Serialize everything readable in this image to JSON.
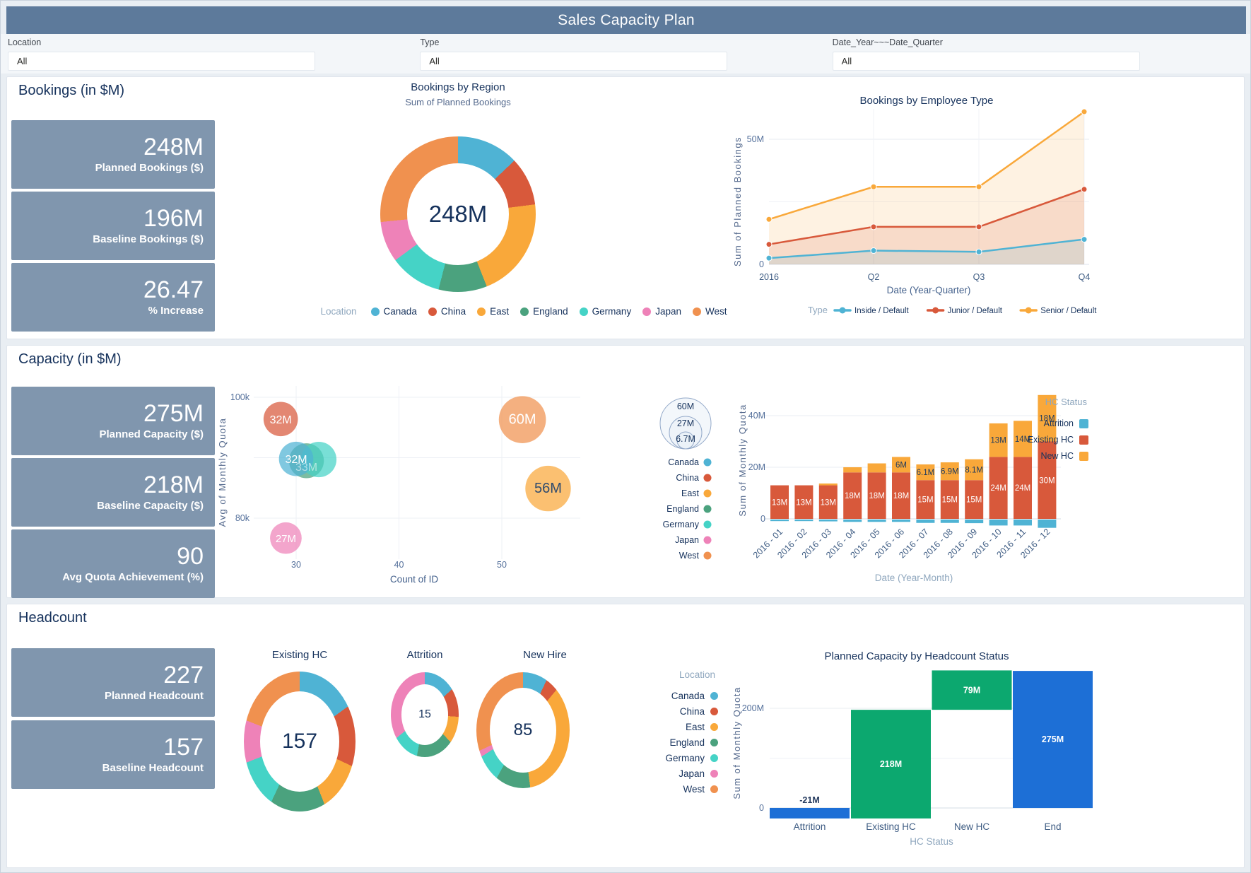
{
  "header": {
    "title": "Sales Capacity Plan"
  },
  "filters": [
    {
      "label": "Location",
      "value": "All"
    },
    {
      "label": "Type",
      "value": "All"
    },
    {
      "label": "Date_Year~~~Date_Quarter",
      "value": "All"
    }
  ],
  "colors": {
    "header_bar": "#5D7A9B",
    "kpi_tile": "#8096AE",
    "title_text": "#16325C",
    "location": {
      "Canada": "#4FB3D4",
      "China": "#D8593B",
      "East": "#F9A83A",
      "England": "#4BA27E",
      "Germany": "#45D3C6",
      "Japan": "#EE82B8",
      "West": "#F0914F"
    },
    "series": {
      "Inside / Default": "#4FB3D4",
      "Junior / Default": "#D8593B",
      "Senior / Default": "#F9A83A"
    },
    "hc_status": {
      "Attrition": "#4FB3D4",
      "Existing HC": "#D8593B",
      "New HC": "#F9A83A"
    },
    "waterfall": {
      "blue": "#1D6FD6",
      "green": "#0CA86F"
    }
  },
  "location_legend": {
    "title": "Location",
    "items": [
      "Canada",
      "China",
      "East",
      "England",
      "Germany",
      "Japan",
      "West"
    ]
  },
  "sections": {
    "bookings": {
      "title": "Bookings (in $M)",
      "kpis": [
        {
          "value": "248M",
          "label": "Planned Bookings ($)"
        },
        {
          "value": "196M",
          "label": "Baseline Bookings ($)"
        },
        {
          "value": "26.47",
          "label": "% Increase"
        }
      ]
    },
    "capacity": {
      "title": "Capacity (in $M)",
      "kpis": [
        {
          "value": "275M",
          "label": "Planned Capacity ($)"
        },
        {
          "value": "218M",
          "label": "Baseline Capacity ($)"
        },
        {
          "value": "90",
          "label": "Avg Quota Achievement (%)"
        }
      ]
    },
    "headcount": {
      "title": "Headcount",
      "kpis": [
        {
          "value": "227",
          "label": "Planned Headcount"
        },
        {
          "value": "157",
          "label": "Baseline Headcount"
        }
      ]
    }
  },
  "chart_data": [
    {
      "id": "bookings_by_region",
      "type": "donut",
      "title": "Bookings by Region",
      "subtitle": "Sum of Planned Bookings",
      "center_label": "248M",
      "unit": "$M",
      "legend_title": "Location",
      "segments": [
        {
          "location": "Canada",
          "value": 32
        },
        {
          "location": "China",
          "value": 25
        },
        {
          "location": "East",
          "value": 52
        },
        {
          "location": "England",
          "value": 25
        },
        {
          "location": "Germany",
          "value": 27
        },
        {
          "location": "Japan",
          "value": 21
        },
        {
          "location": "West",
          "value": 66
        }
      ]
    },
    {
      "id": "bookings_by_employee_type",
      "type": "line",
      "title": "Bookings by Employee Type",
      "x": [
        "2016",
        "Q2",
        "Q3",
        "Q4"
      ],
      "xlabel": "Date (Year-Quarter)",
      "ylabel": "Sum of Planned Bookings",
      "ylim": [
        0,
        63
      ],
      "legend_title": "Type",
      "yticks": [
        {
          "v": 0,
          "label": "0"
        },
        {
          "v": 50,
          "label": "50M"
        }
      ],
      "series": [
        {
          "name": "Inside / Default",
          "values": [
            2.5,
            5.5,
            5,
            10
          ]
        },
        {
          "name": "Junior / Default",
          "values": [
            8,
            15,
            15,
            30
          ]
        },
        {
          "name": "Senior / Default",
          "values": [
            18,
            31,
            31,
            61
          ]
        }
      ]
    },
    {
      "id": "capacity_bubble",
      "type": "bubble",
      "xlabel": "Count of ID",
      "ylabel": "Avg of Monthly Quota",
      "xticks": [
        30,
        40,
        50
      ],
      "yticks": [
        {
          "v": 80000,
          "label": "80k"
        },
        {
          "v": 100000,
          "label": "100k"
        }
      ],
      "points": [
        {
          "location": "China",
          "x": 28.5,
          "y": 96400,
          "size_m": 32,
          "value": "32M"
        },
        {
          "location": "England",
          "x": 31,
          "y": 89500,
          "size_m": 33,
          "value": "33M",
          "label_faint": true
        },
        {
          "location": "Germany",
          "x": 32.2,
          "y": 89700,
          "size_m": 34,
          "value": "34M",
          "label_hidden": true
        },
        {
          "location": "Canada",
          "x": 30,
          "y": 89800,
          "size_m": 32,
          "value": "32M"
        },
        {
          "location": "Japan",
          "x": 29,
          "y": 76700,
          "size_m": 27,
          "value": "27M"
        },
        {
          "location": "West",
          "x": 52,
          "y": 96300,
          "size_m": 60,
          "value": "60M"
        },
        {
          "location": "East",
          "x": 54.5,
          "y": 84900,
          "size_m": 56,
          "value": "56M",
          "label_dark": true
        }
      ],
      "size_legend": [
        "60M",
        "27M",
        "6.7M"
      ]
    },
    {
      "id": "capacity_by_month",
      "type": "stacked_bar",
      "xlabel": "Date (Year-Month)",
      "ylabel": "Sum of Monthly Quota",
      "legend_title": "HC Status",
      "categories": [
        "2016 - 01",
        "2016 - 02",
        "2016 - 03",
        "2016 - 04",
        "2016 - 05",
        "2016 - 06",
        "2016 - 07",
        "2016 - 08",
        "2016 - 09",
        "2016 - 10",
        "2016 - 11",
        "2016 - 12"
      ],
      "yticks": [
        {
          "v": 0,
          "label": "0"
        },
        {
          "v": 20,
          "label": "20M"
        },
        {
          "v": 40,
          "label": "40M"
        }
      ],
      "series": [
        {
          "name": "Attrition",
          "values": [
            -0.6,
            -0.6,
            -0.7,
            -0.9,
            -0.9,
            -0.9,
            -1.3,
            -1.3,
            -1.4,
            -2.3,
            -2.3,
            -3.2
          ],
          "labels": [
            "",
            "",
            "",
            "",
            "",
            "",
            "",
            "",
            "",
            "",
            "",
            ""
          ]
        },
        {
          "name": "Existing HC",
          "values": [
            13,
            13,
            13,
            18,
            18,
            18,
            15,
            15,
            15,
            24,
            24,
            30
          ],
          "labels": [
            "13M",
            "13M",
            "13M",
            "18M",
            "18M",
            "18M",
            "15M",
            "15M",
            "15M",
            "24M",
            "24M",
            "30M"
          ]
        },
        {
          "name": "New HC",
          "values": [
            0,
            0,
            0.7,
            2,
            3.5,
            6,
            6.1,
            6.9,
            8.1,
            13,
            14,
            18
          ],
          "labels": [
            "",
            "",
            "",
            "",
            "",
            "6M",
            "6.1M",
            "6.9M",
            "8.1M",
            "13M",
            "14M",
            "18M"
          ]
        }
      ]
    },
    {
      "id": "headcount_existing",
      "type": "donut",
      "title": "Existing HC",
      "center_label": "157",
      "segments": [
        {
          "location": "Canada",
          "value": 15
        },
        {
          "location": "China",
          "value": 17
        },
        {
          "location": "East",
          "value": 12
        },
        {
          "location": "England",
          "value": 13
        },
        {
          "location": "Germany",
          "value": 12
        },
        {
          "location": "Japan",
          "value": 12
        },
        {
          "location": "West",
          "value": 19
        }
      ]
    },
    {
      "id": "headcount_attrition",
      "type": "donut",
      "title": "Attrition",
      "center_label": "15",
      "segments": [
        {
          "location": "Canada",
          "value": 13
        },
        {
          "location": "China",
          "value": 13
        },
        {
          "location": "East",
          "value": 12
        },
        {
          "location": "England",
          "value": 15
        },
        {
          "location": "Germany",
          "value": 11
        },
        {
          "location": "Japan",
          "value": 36
        }
      ]
    },
    {
      "id": "headcount_new_hire",
      "type": "donut",
      "title": "New Hire",
      "center_label": "85",
      "segments": [
        {
          "location": "Canada",
          "value": 7
        },
        {
          "location": "China",
          "value": 4
        },
        {
          "location": "East",
          "value": 37
        },
        {
          "location": "England",
          "value": 10
        },
        {
          "location": "Germany",
          "value": 8
        },
        {
          "location": "Japan",
          "value": 2
        },
        {
          "location": "West",
          "value": 32
        }
      ]
    },
    {
      "id": "planned_capacity_waterfall",
      "type": "waterfall",
      "title": "Planned Capacity by Headcount Status",
      "xlabel": "HC Status",
      "ylabel": "Sum of Monthly Quota",
      "yticks": [
        {
          "v": 0,
          "label": "0"
        },
        {
          "v": 200,
          "label": "200M"
        }
      ],
      "bars": [
        {
          "name": "Attrition",
          "from": 0,
          "to": -21,
          "label": "-21M",
          "color": "blue",
          "label_outside": true
        },
        {
          "name": "Existing HC",
          "from": -21,
          "to": 197,
          "label": "218M",
          "color": "green"
        },
        {
          "name": "New HC",
          "from": 197,
          "to": 276,
          "label": "79M",
          "color": "green"
        },
        {
          "name": "End",
          "from": 0,
          "to": 275,
          "label": "275M",
          "color": "blue"
        }
      ]
    }
  ]
}
